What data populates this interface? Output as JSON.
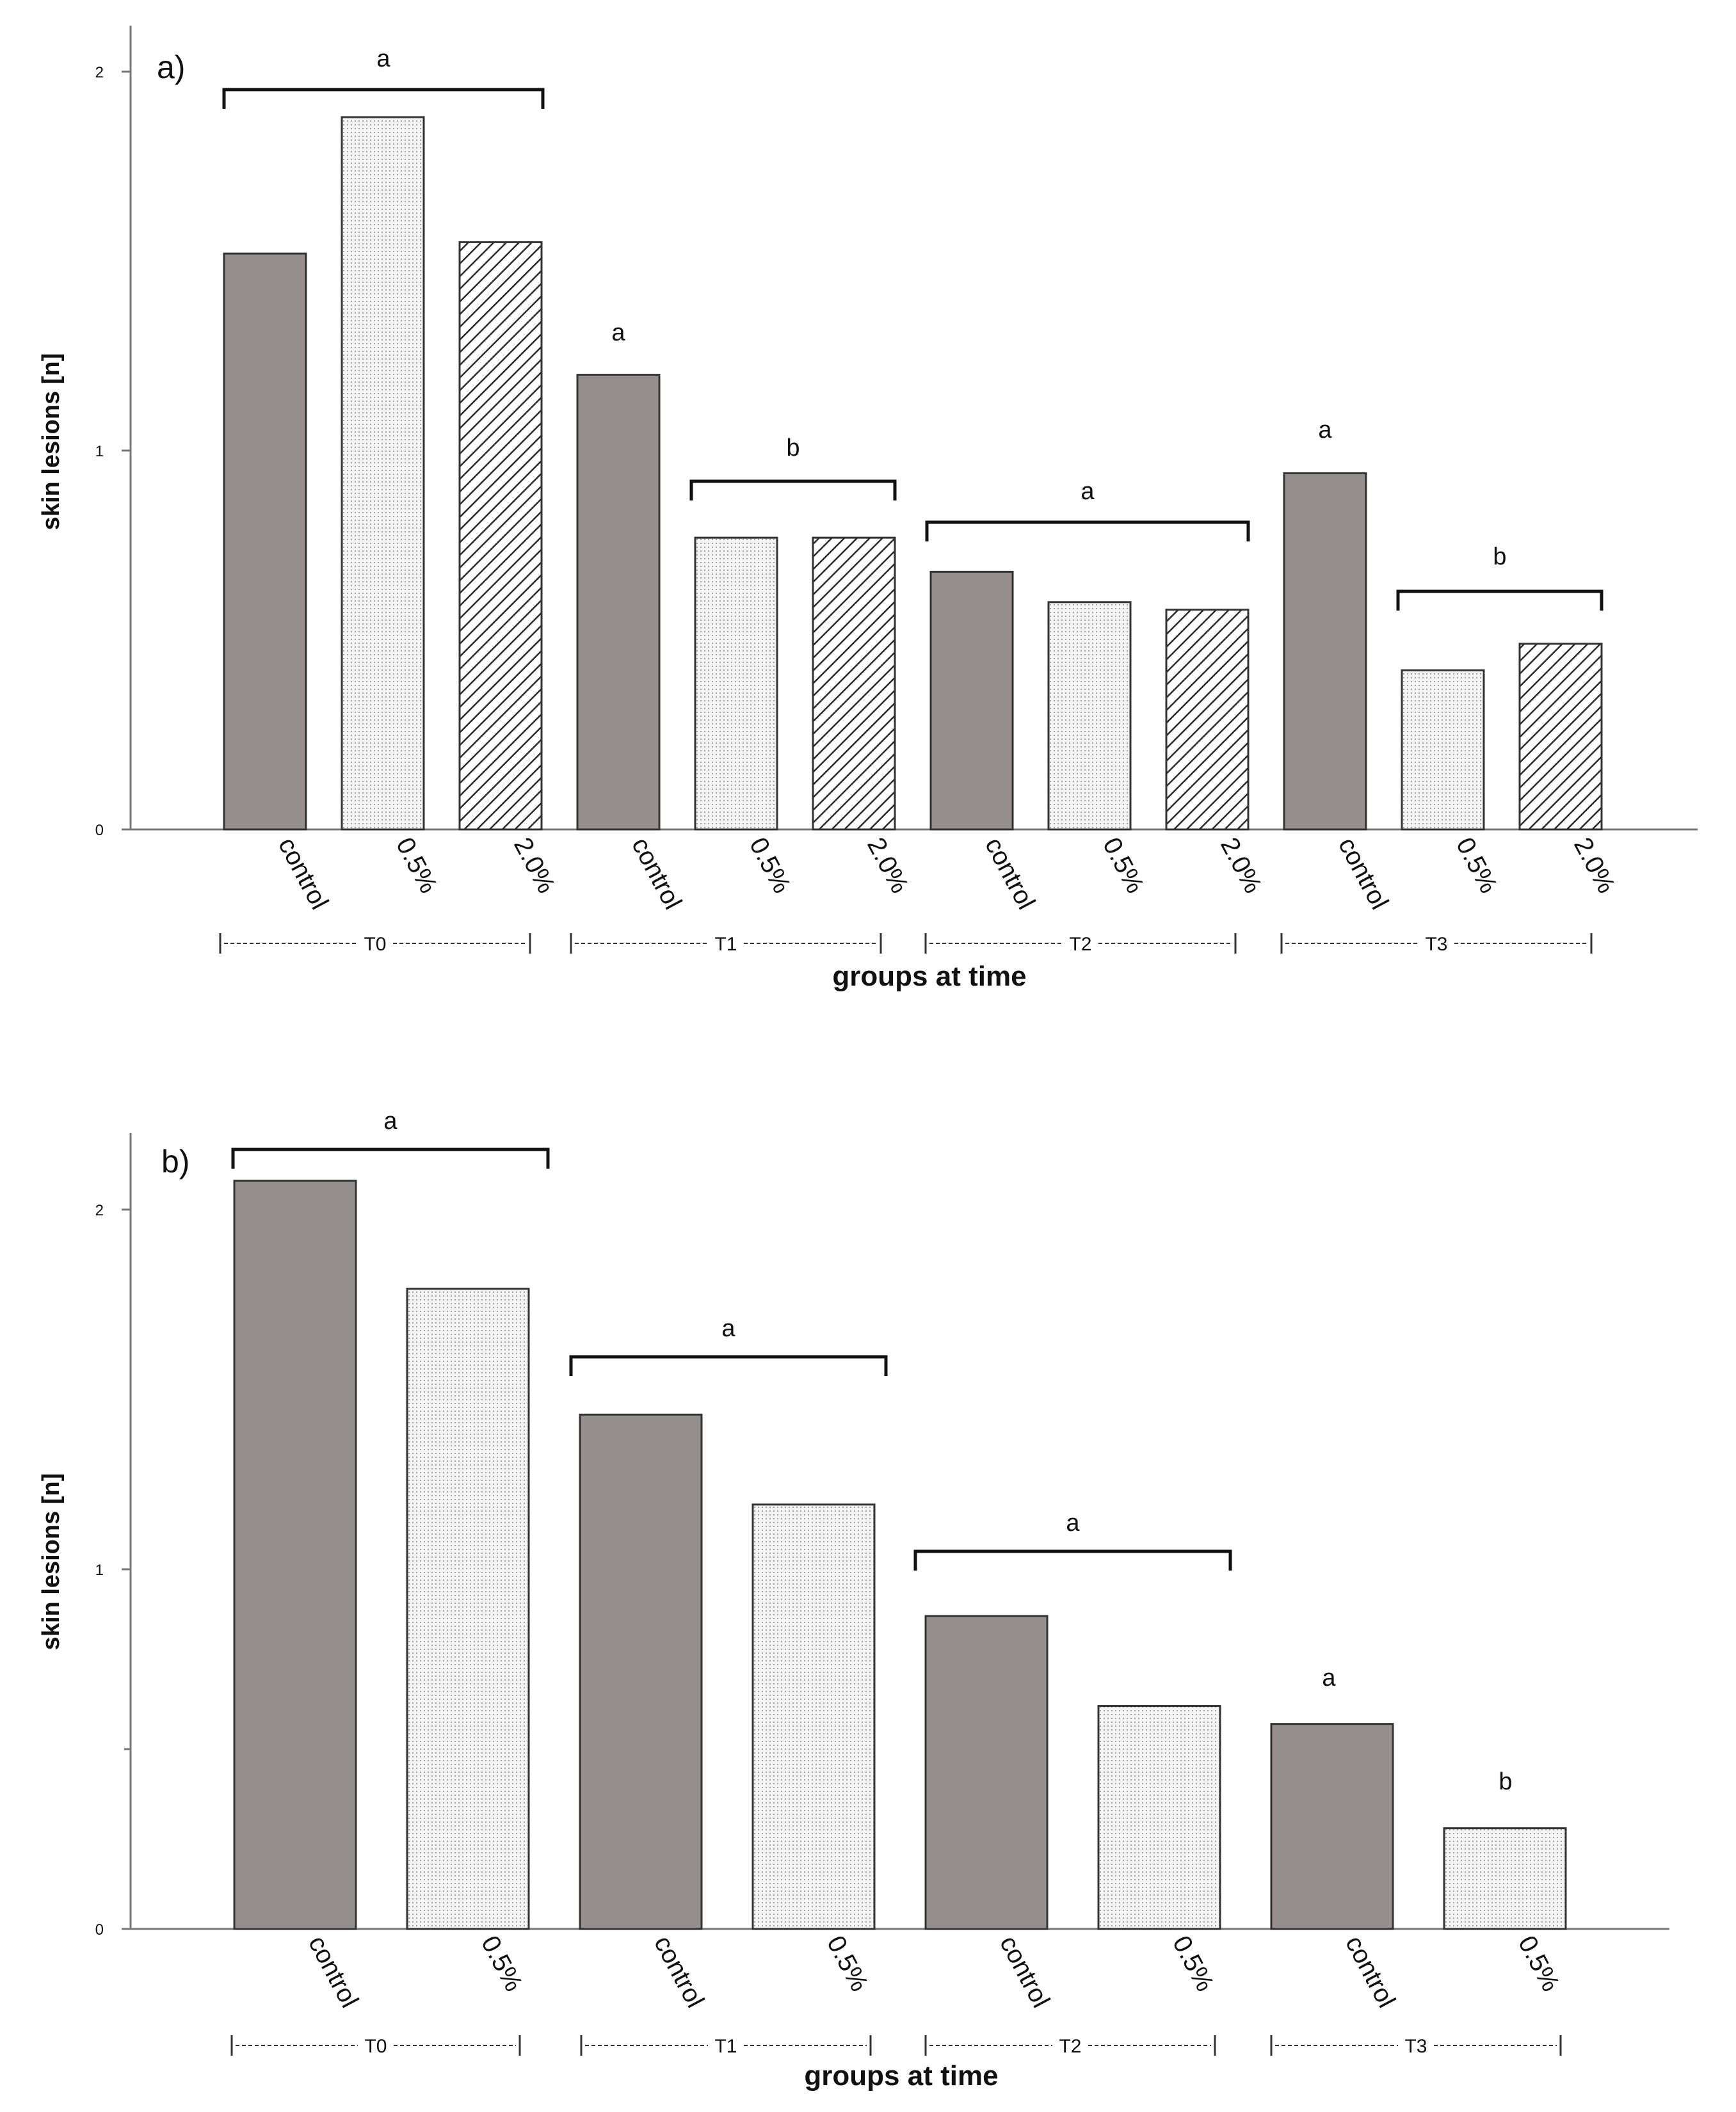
{
  "chart_data": [
    {
      "type": "bar",
      "panel_label": "a)",
      "xlabel": "groups at time",
      "ylabel": "skin lesions [n]",
      "ylim": [
        0,
        2.2
      ],
      "yticks": [
        "0",
        "1",
        "2"
      ],
      "categories": [
        "control",
        "0.5%",
        "2.0%",
        "control",
        "0.5%",
        "2.0%",
        "control",
        "0.5%",
        "2.0%",
        "control",
        "0.5%",
        "2.0%"
      ],
      "values": [
        1.52,
        1.88,
        1.55,
        1.2,
        0.77,
        0.77,
        0.68,
        0.6,
        0.58,
        0.94,
        0.42,
        0.49
      ],
      "groups": [
        {
          "label": "T0",
          "text": "|----------------T0----------------|"
        },
        {
          "label": "T1",
          "text": "|----------------T1----------------|"
        },
        {
          "label": "T2",
          "text": "|----------------T2----------------|"
        },
        {
          "label": "T3",
          "text": "|----------------T3----------------|"
        }
      ],
      "significance": [
        {
          "letter": "a",
          "bracket": true
        },
        {
          "letter": "a",
          "bracket": false
        },
        {
          "letter": "b",
          "bracket": true
        },
        {
          "letter": "a",
          "bracket": true
        },
        {
          "letter": "a",
          "bracket": false
        },
        {
          "letter": "b",
          "bracket": true
        }
      ]
    },
    {
      "type": "bar",
      "panel_label": "b)",
      "xlabel": "groups at time",
      "ylabel": "skin lesions [n]",
      "ylim": [
        0,
        2.2
      ],
      "yticks": [
        "0",
        "1",
        "2"
      ],
      "categories": [
        "control",
        "0.5%",
        "control",
        "0.5%",
        "control",
        "0.5%",
        "control",
        "0.5%"
      ],
      "values": [
        2.08,
        1.78,
        1.43,
        1.18,
        0.87,
        0.62,
        0.57,
        0.28
      ],
      "groups": [
        {
          "label": "T0",
          "text": "|----------------T0----------------|"
        },
        {
          "label": "T1",
          "text": "|----------------T1----------------|"
        },
        {
          "label": "T2",
          "text": "|----------------T2----------------|"
        },
        {
          "label": "T3",
          "text": "|----------------T3----------------|"
        }
      ],
      "significance": [
        {
          "letter": "a",
          "bracket": true
        },
        {
          "letter": "a",
          "bracket": true
        },
        {
          "letter": "a",
          "bracket": true
        },
        {
          "letter": "a",
          "bracket": false
        },
        {
          "letter": "b",
          "bracket": false
        }
      ]
    }
  ],
  "colors": {
    "control_fill": "#958f8e",
    "dotted_bg": "#f4f4f4",
    "dotted_dot": "#9a9a9a",
    "hatch_bg": "#ffffff",
    "hatch_line": "#2a2a2a",
    "bar_edge": "#333333"
  }
}
